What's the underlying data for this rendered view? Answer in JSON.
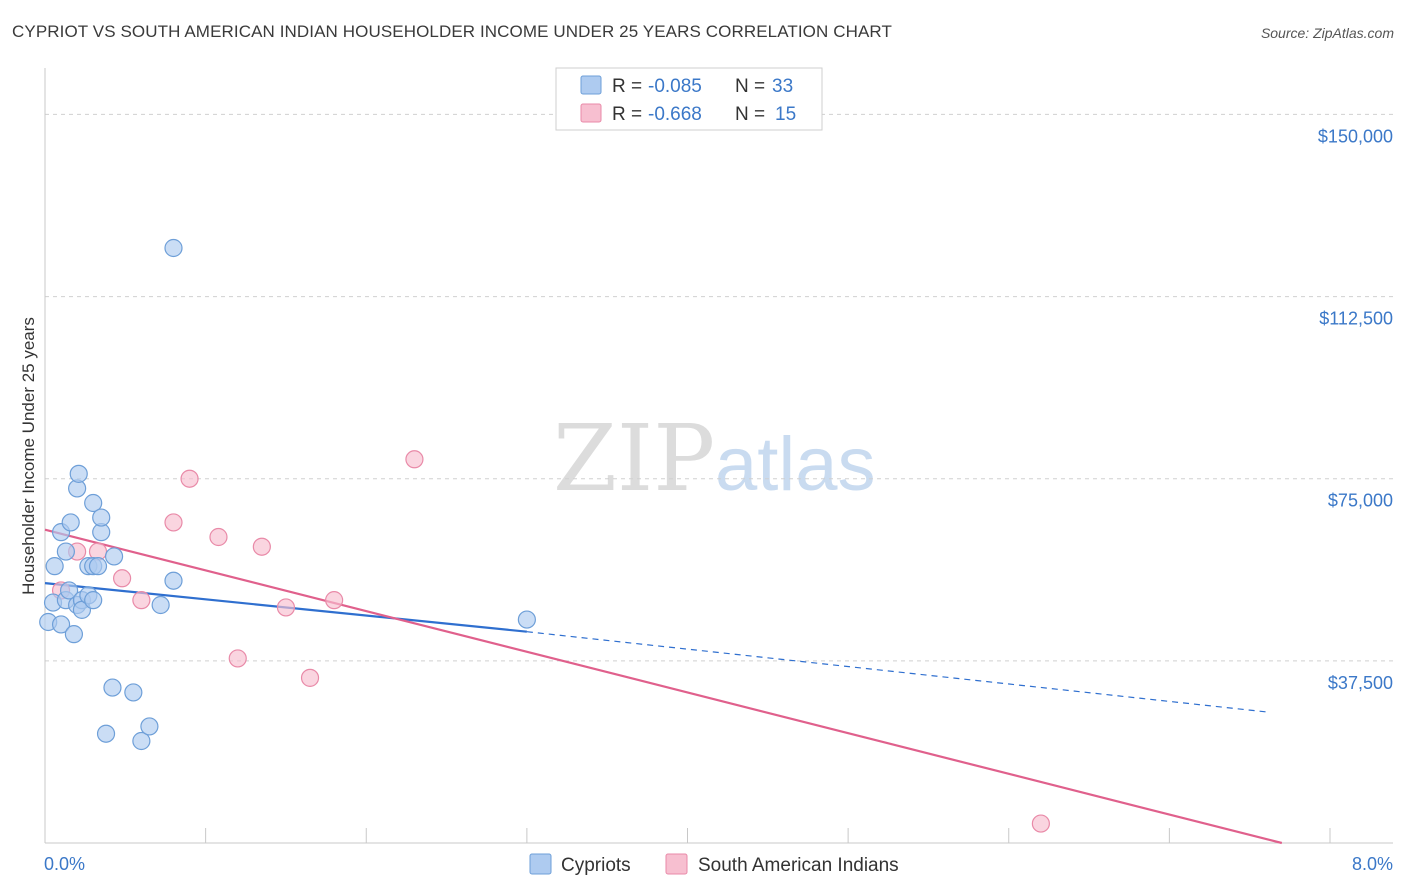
{
  "header": {
    "title": "CYPRIOT VS SOUTH AMERICAN INDIAN HOUSEHOLDER INCOME UNDER 25 YEARS CORRELATION CHART",
    "source": "Source: ZipAtlas.com"
  },
  "watermark": {
    "zip": "ZIP",
    "atlas": "atlas"
  },
  "legend": {
    "rows": [
      {
        "r_label": "R =",
        "r_value": "-0.085",
        "n_label": "N =",
        "n_value": "33"
      },
      {
        "r_label": "R =",
        "r_value": "-0.668",
        "n_label": "N =",
        "n_value": "15"
      }
    ]
  },
  "colors": {
    "cypriots_fill": "#aecbf0",
    "cypriots_stroke": "#6e9fd8",
    "cypriots_line": "#2f6fcf",
    "sai_fill": "#f7bfd0",
    "sai_stroke": "#e98aa8",
    "sai_line": "#e0608c",
    "grid": "#d0d0d0",
    "tick_text": "#3b78c8"
  },
  "chart_data": {
    "type": "scatter",
    "title": "CYPRIOT VS SOUTH AMERICAN INDIAN HOUSEHOLDER INCOME UNDER 25 YEARS CORRELATION CHART",
    "xlabel": "",
    "ylabel": "Householder Income Under 25 years",
    "xlim": [
      0,
      8
    ],
    "ylim": [
      0,
      157500
    ],
    "x_tick_labels": {
      "left": "0.0%",
      "right": "8.0%"
    },
    "y_ticks": [
      {
        "value": 37500,
        "label": "$37,500"
      },
      {
        "value": 75000,
        "label": "$75,000"
      },
      {
        "value": 112500,
        "label": "$112,500"
      },
      {
        "value": 150000,
        "label": "$150,000"
      }
    ],
    "series": [
      {
        "name": "Cypriots",
        "r": -0.085,
        "n": 33,
        "points": [
          [
            0.02,
            45500
          ],
          [
            0.05,
            49500
          ],
          [
            0.06,
            57000
          ],
          [
            0.1,
            45000
          ],
          [
            0.1,
            64000
          ],
          [
            0.13,
            50000
          ],
          [
            0.15,
            52000
          ],
          [
            0.13,
            60000
          ],
          [
            0.16,
            66000
          ],
          [
            0.2,
            49000
          ],
          [
            0.18,
            43000
          ],
          [
            0.2,
            73000
          ],
          [
            0.21,
            76000
          ],
          [
            0.23,
            50000
          ],
          [
            0.23,
            48000
          ],
          [
            0.27,
            51000
          ],
          [
            0.27,
            57000
          ],
          [
            0.3,
            57000
          ],
          [
            0.3,
            50000
          ],
          [
            0.3,
            70000
          ],
          [
            0.33,
            57000
          ],
          [
            0.35,
            64000
          ],
          [
            0.35,
            67000
          ],
          [
            0.43,
            59000
          ],
          [
            0.42,
            32000
          ],
          [
            0.38,
            22500
          ],
          [
            0.55,
            31000
          ],
          [
            0.6,
            21000
          ],
          [
            0.65,
            24000
          ],
          [
            0.72,
            49000
          ],
          [
            0.8,
            54000
          ],
          [
            0.8,
            122500
          ],
          [
            3.0,
            46000
          ]
        ],
        "trend": {
          "x0": 0.0,
          "y0": 53500,
          "x1": 3.0,
          "y1": 43500,
          "dash_to_x": 7.6,
          "dash_to_y": 27000
        }
      },
      {
        "name": "South American Indians",
        "r": -0.668,
        "n": 15,
        "points": [
          [
            0.1,
            52000
          ],
          [
            0.2,
            60000
          ],
          [
            0.33,
            60000
          ],
          [
            0.48,
            54500
          ],
          [
            0.6,
            50000
          ],
          [
            0.8,
            66000
          ],
          [
            0.9,
            75000
          ],
          [
            1.08,
            63000
          ],
          [
            1.2,
            38000
          ],
          [
            1.35,
            61000
          ],
          [
            1.5,
            48500
          ],
          [
            1.65,
            34000
          ],
          [
            1.8,
            50000
          ],
          [
            2.3,
            79000
          ],
          [
            6.2,
            4000
          ]
        ],
        "trend": {
          "x0": 0.0,
          "y0": 64500,
          "x1": 7.7,
          "y1": 0
        }
      }
    ]
  },
  "bottom_legend": {
    "items": [
      {
        "label": "Cypriots"
      },
      {
        "label": "South American Indians"
      }
    ]
  }
}
